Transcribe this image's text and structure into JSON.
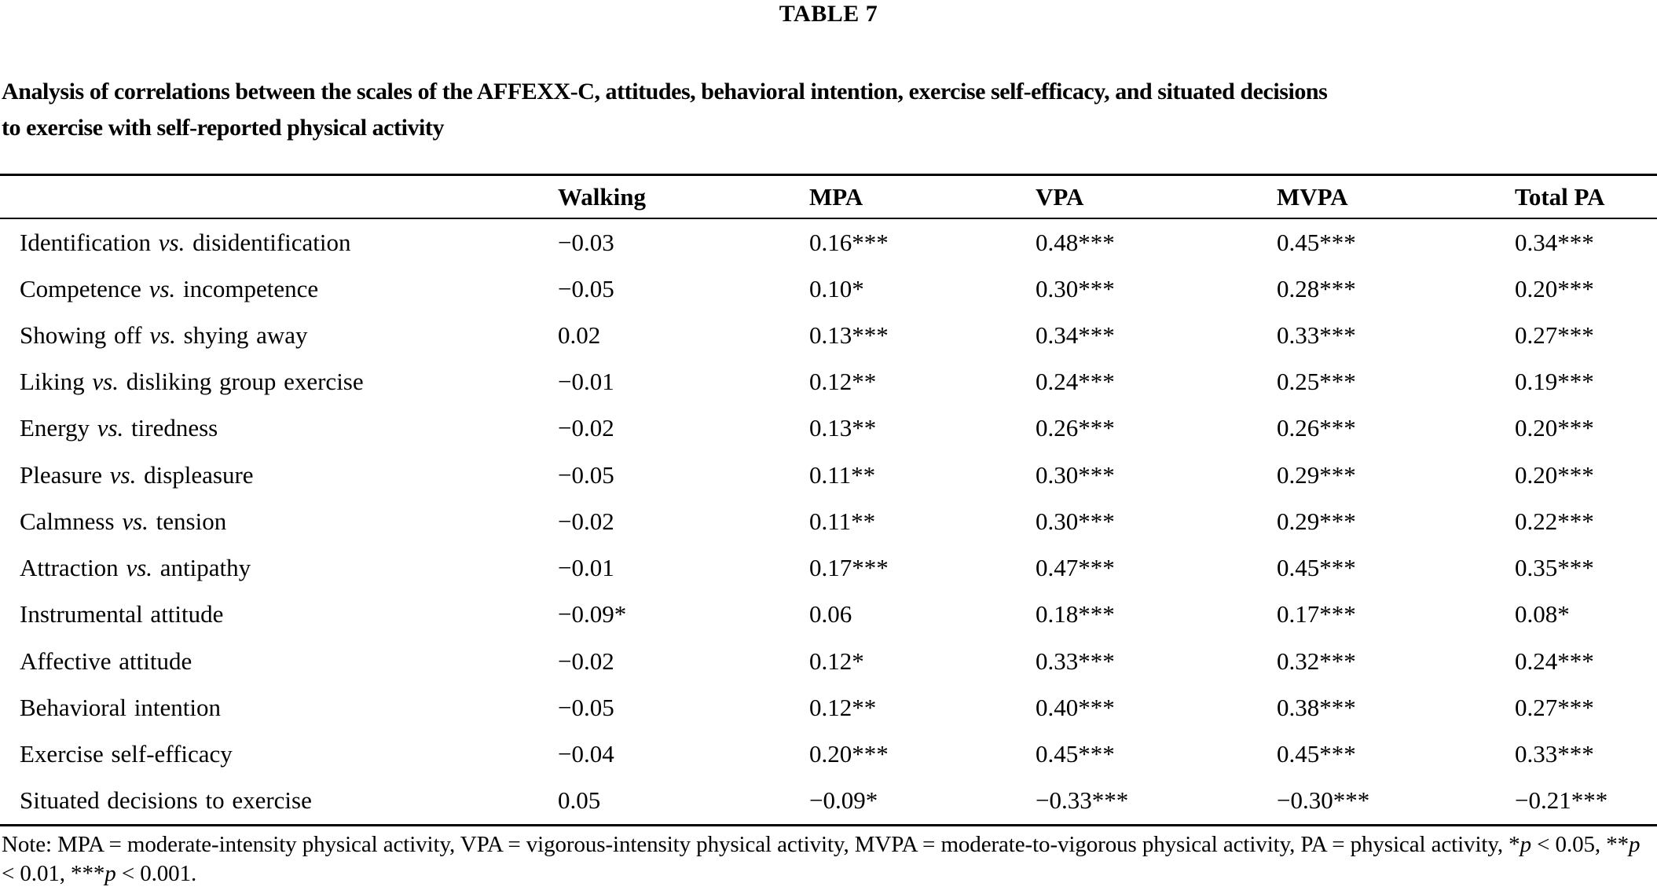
{
  "page": {
    "table_number": "TABLE 7",
    "caption_lines": [
      "Analysis of correlations between the scales of the AFFEXX-C, attitudes, behavioral intention, exercise self-efficacy, and situated decisions",
      "to exercise with self-reported physical activity"
    ]
  },
  "table": {
    "columns": [
      "Walking",
      "MPA",
      "VPA",
      "MVPA",
      "Total PA"
    ],
    "rows": [
      {
        "label_parts": [
          {
            "t": "Identification ",
            "i": false
          },
          {
            "t": "vs.",
            "i": true
          },
          {
            "t": " disidentification",
            "i": false
          }
        ],
        "values": [
          "−0.03",
          "0.16***",
          "0.48***",
          "0.45***",
          "0.34***"
        ]
      },
      {
        "label_parts": [
          {
            "t": "Competence ",
            "i": false
          },
          {
            "t": "vs.",
            "i": true
          },
          {
            "t": " incompetence",
            "i": false
          }
        ],
        "values": [
          "−0.05",
          "0.10*",
          "0.30***",
          "0.28***",
          "0.20***"
        ]
      },
      {
        "label_parts": [
          {
            "t": "Showing off ",
            "i": false
          },
          {
            "t": "vs.",
            "i": true
          },
          {
            "t": " shying away",
            "i": false
          }
        ],
        "values": [
          "0.02",
          "0.13***",
          "0.34***",
          "0.33***",
          "0.27***"
        ]
      },
      {
        "label_parts": [
          {
            "t": "Liking ",
            "i": false
          },
          {
            "t": "vs.",
            "i": true
          },
          {
            "t": " disliking group exercise",
            "i": false
          }
        ],
        "values": [
          "−0.01",
          "0.12**",
          "0.24***",
          "0.25***",
          "0.19***"
        ]
      },
      {
        "label_parts": [
          {
            "t": "Energy ",
            "i": false
          },
          {
            "t": "vs.",
            "i": true
          },
          {
            "t": " tiredness",
            "i": false
          }
        ],
        "values": [
          "−0.02",
          "0.13**",
          "0.26***",
          "0.26***",
          "0.20***"
        ]
      },
      {
        "label_parts": [
          {
            "t": "Pleasure ",
            "i": false
          },
          {
            "t": "vs.",
            "i": true
          },
          {
            "t": " displeasure",
            "i": false
          }
        ],
        "values": [
          "−0.05",
          "0.11**",
          "0.30***",
          "0.29***",
          "0.20***"
        ]
      },
      {
        "label_parts": [
          {
            "t": "Calmness ",
            "i": false
          },
          {
            "t": "vs.",
            "i": true
          },
          {
            "t": " tension",
            "i": false
          }
        ],
        "values": [
          "−0.02",
          "0.11**",
          "0.30***",
          "0.29***",
          "0.22***"
        ]
      },
      {
        "label_parts": [
          {
            "t": "Attraction ",
            "i": false
          },
          {
            "t": "vs.",
            "i": true
          },
          {
            "t": " antipathy",
            "i": false
          }
        ],
        "values": [
          "−0.01",
          "0.17***",
          "0.47***",
          "0.45***",
          "0.35***"
        ]
      },
      {
        "label_parts": [
          {
            "t": "Instrumental attitude",
            "i": false
          }
        ],
        "values": [
          "−0.09*",
          "0.06",
          "0.18***",
          "0.17***",
          "0.08*"
        ]
      },
      {
        "label_parts": [
          {
            "t": "Affective attitude",
            "i": false
          }
        ],
        "values": [
          "−0.02",
          "0.12*",
          "0.33***",
          "0.32***",
          "0.24***"
        ]
      },
      {
        "label_parts": [
          {
            "t": "Behavioral intention",
            "i": false
          }
        ],
        "values": [
          "−0.05",
          "0.12**",
          "0.40***",
          "0.38***",
          "0.27***"
        ]
      },
      {
        "label_parts": [
          {
            "t": "Exercise self-efficacy",
            "i": false
          }
        ],
        "values": [
          "−0.04",
          "0.20***",
          "0.45***",
          "0.45***",
          "0.33***"
        ]
      },
      {
        "label_parts": [
          {
            "t": "Situated decisions to exercise",
            "i": false
          }
        ],
        "values": [
          "0.05",
          "−0.09*",
          "−0.33***",
          "−0.30***",
          "−0.21***"
        ]
      }
    ]
  },
  "note_parts": [
    {
      "t": "Note: MPA = moderate-intensity physical activity, VPA = vigorous-intensity physical activity, MVPA = moderate-to-vigorous physical activity, PA = physical activity, *",
      "i": false
    },
    {
      "t": "p",
      "i": true
    },
    {
      "t": " < 0.05, **",
      "i": false
    },
    {
      "t": "p",
      "i": true
    },
    {
      "t": " < 0.01, ***",
      "i": false
    },
    {
      "t": "p",
      "i": true
    },
    {
      "t": " < 0.001.",
      "i": false
    }
  ]
}
